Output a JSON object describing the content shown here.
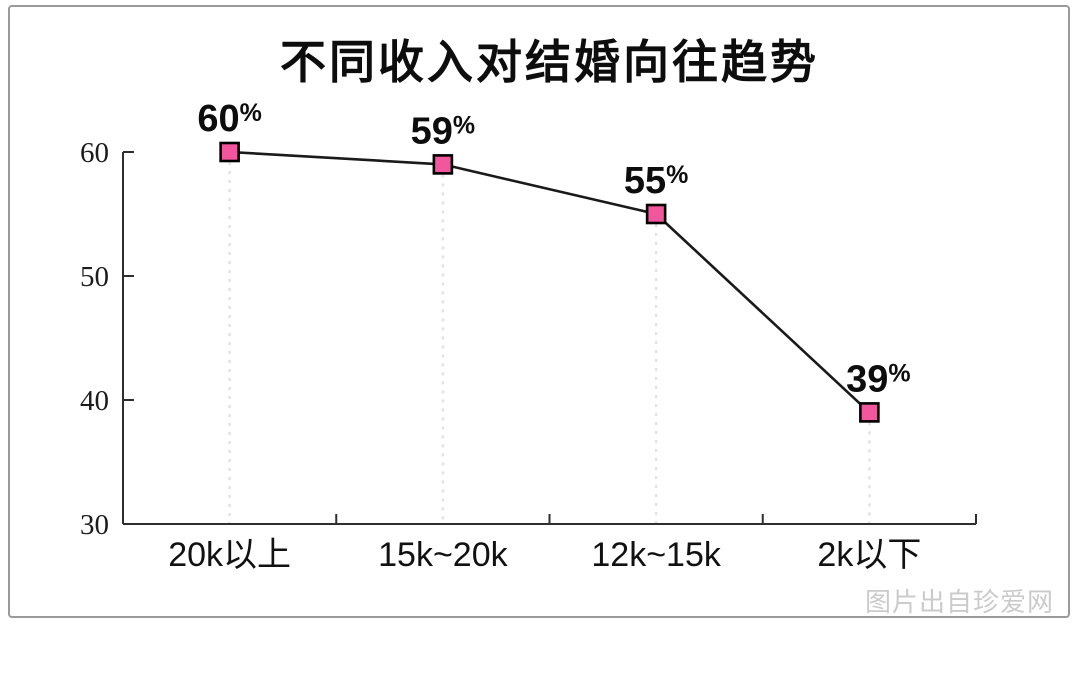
{
  "watermark": "图片出自珍爱网",
  "chart_data": {
    "type": "line",
    "title": "不同收入对结婚向往趋势",
    "categories": [
      "20k以上",
      "15k~20k",
      "12k~15k",
      "2k以下"
    ],
    "values": [
      60,
      59,
      55,
      39
    ],
    "point_labels": [
      "60%",
      "59%",
      "55%",
      "39%"
    ],
    "xlabel": "",
    "ylabel": "",
    "ylim": [
      30,
      60
    ],
    "yticks": [
      30,
      40,
      50,
      60
    ],
    "legend": "none",
    "grid": "dashed-vertical-drop-lines",
    "marker_shape": "square",
    "colors": {
      "marker_fill": "#f2579e",
      "marker_border": "#000000",
      "line": "#1a1a1a",
      "drop_line": "#e2e2e2",
      "axis": "#2e2e2e",
      "label_text": "#0d0d0d",
      "watermark": "#cbcbcb",
      "panel_border": "#9a9a9a"
    }
  }
}
